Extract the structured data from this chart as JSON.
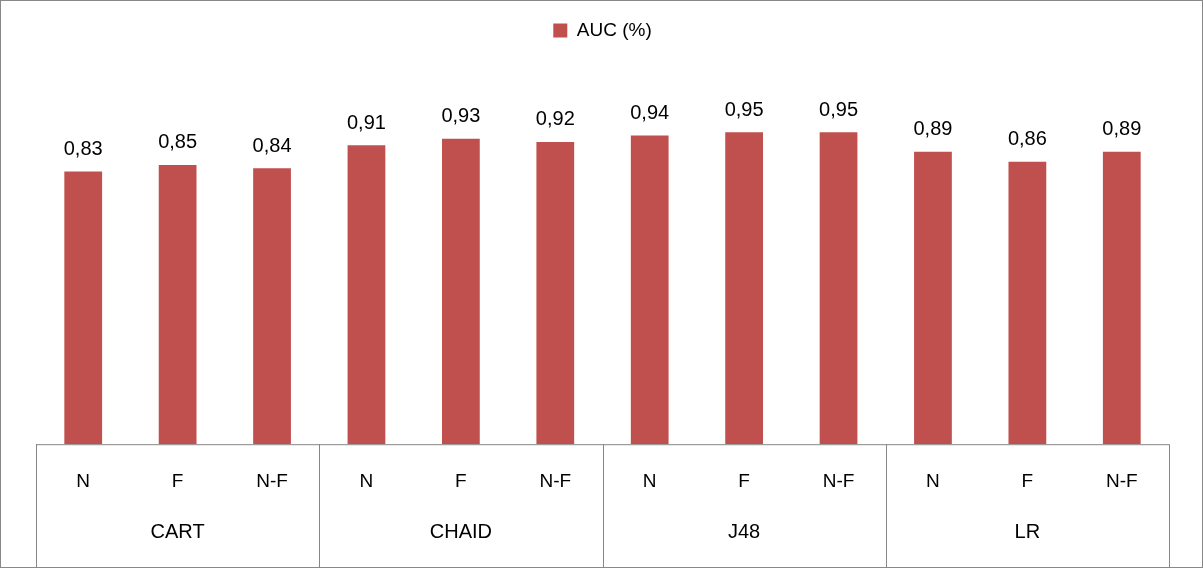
{
  "chart_data": {
    "type": "bar",
    "categories": [
      "N",
      "F",
      "N-F",
      "N",
      "F",
      "N-F",
      "N",
      "F",
      "N-F",
      "N",
      "F",
      "N-F"
    ],
    "series": [
      {
        "name": "AUC (%)",
        "color": "#c0504d",
        "values": [
          0.83,
          0.85,
          0.84,
          0.91,
          0.93,
          0.92,
          0.94,
          0.95,
          0.95,
          0.89,
          0.86,
          0.89
        ],
        "value_labels": [
          "0,83",
          "0,85",
          "0,84",
          "0,91",
          "0,93",
          "0,92",
          "0,94",
          "0,95",
          "0,95",
          "0,89",
          "0,86",
          "0,89"
        ]
      }
    ],
    "annotations": [
      "CART",
      "CHAID",
      "J48",
      "LR"
    ],
    "tick_labels": "x",
    "grid": false,
    "legend": "top"
  }
}
